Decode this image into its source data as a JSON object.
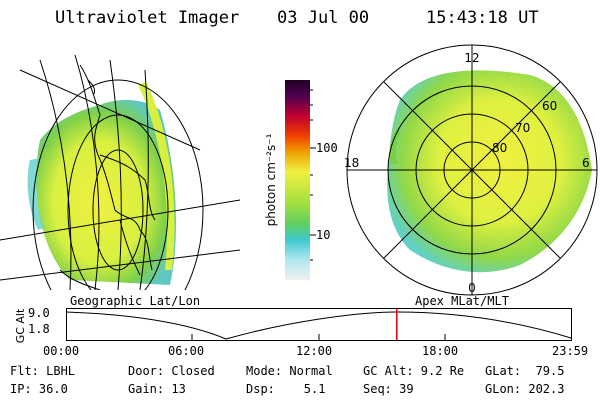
{
  "header": {
    "instrument": "Ultraviolet Imager",
    "date": "03 Jul 00",
    "time": "15:43:18 UT"
  },
  "colorbar": {
    "unit_label": "photon cm⁻²s⁻¹",
    "ticks": [
      "100",
      "10"
    ]
  },
  "polar_plot": {
    "mlt_labels": [
      "12",
      "18",
      "6",
      "0"
    ],
    "lat_labels": [
      "60",
      "70",
      "80"
    ]
  },
  "timeline": {
    "left_label": "Geographic Lat/Lon",
    "right_label": "Apex MLat/MLT",
    "axis_label": "GC Alt",
    "y_top": "9.0",
    "y_bottom": "1.8",
    "time_ticks": [
      "00:00",
      "06:00",
      "12:00",
      "18:00",
      "23:59"
    ],
    "current_time_fraction": 0.655
  },
  "status": {
    "row1": {
      "flt": "Flt: LBHL",
      "door": "Door: Closed",
      "mode": "Mode: Normal",
      "gc_alt": "GC Alt: 9.2 Re",
      "glat": "GLat:  79.5"
    },
    "row2": {
      "ip": "IP: 36.0",
      "gain": "Gain: 13",
      "dsp": "Dsp:    5.1",
      "seq": "Seq: 39",
      "glon": "GLon: 202.3"
    }
  },
  "colors": {
    "auroral_main": "#d8f040",
    "auroral_green": "#78d048",
    "auroral_cyan": "#60d0c8",
    "timeline_marker": "#e00000"
  }
}
